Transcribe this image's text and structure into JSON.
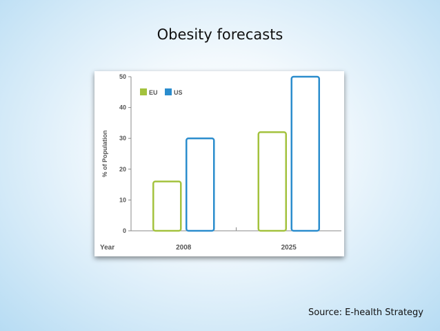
{
  "slide": {
    "title": "Obesity forecasts",
    "source": "Source: E-health Strategy"
  },
  "chart_data": {
    "type": "bar",
    "xlabel": "Year",
    "ylabel": "% of Population",
    "categories": [
      "2008",
      "2025"
    ],
    "series": [
      {
        "name": "EU",
        "values": [
          16,
          32
        ],
        "color": "#a3c23d"
      },
      {
        "name": "US",
        "values": [
          30,
          50
        ],
        "color": "#2a8ccd"
      }
    ],
    "ylim": [
      0,
      50
    ],
    "yticks": [
      0,
      10,
      20,
      30,
      40,
      50
    ],
    "legend": "top-left",
    "grid": false
  }
}
